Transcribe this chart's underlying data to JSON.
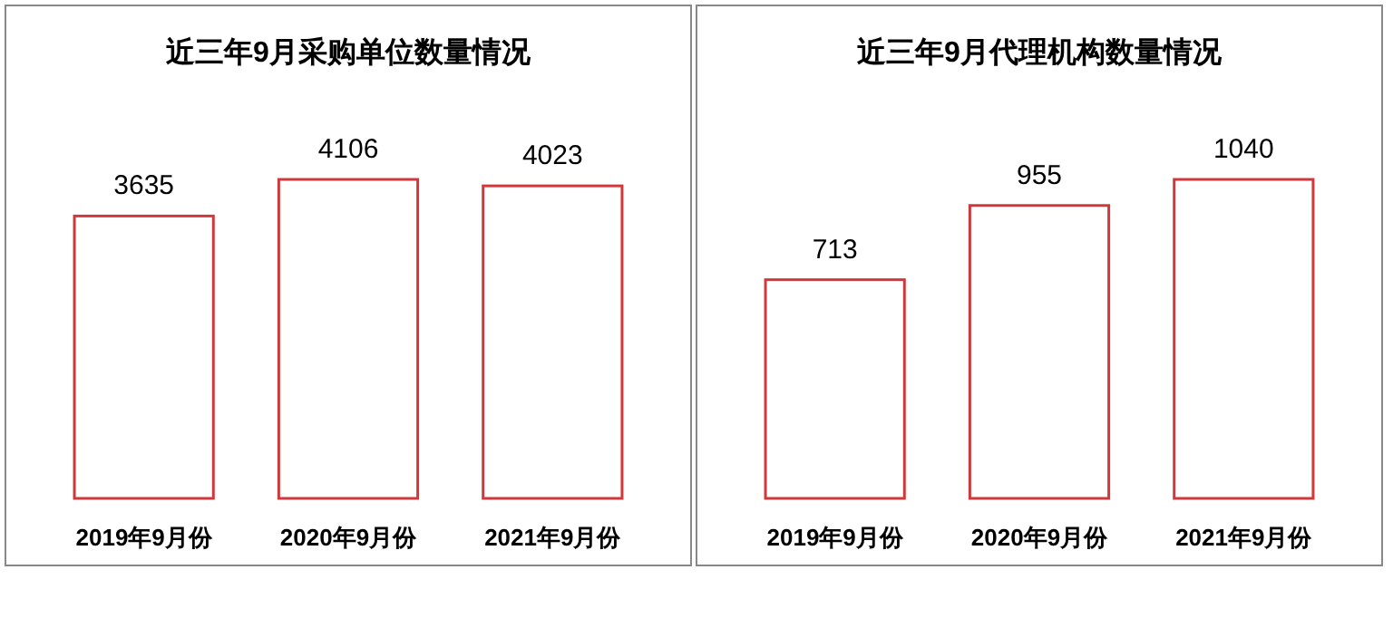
{
  "chart_data": [
    {
      "type": "bar",
      "title": "近三年9月采购单位数量情况",
      "categories": [
        "2019年9月份",
        "2020年9月份",
        "2021年9月份"
      ],
      "values": [
        3635,
        4106,
        4023
      ],
      "color": "#d0393b",
      "data_labels": true
    },
    {
      "type": "bar",
      "title": "近三年9月代理机构数量情况",
      "categories": [
        "2019年9月份",
        "2020年9月份",
        "2021年9月份"
      ],
      "values": [
        713,
        955,
        1040
      ],
      "color": "#d0393b",
      "data_labels": true
    }
  ]
}
